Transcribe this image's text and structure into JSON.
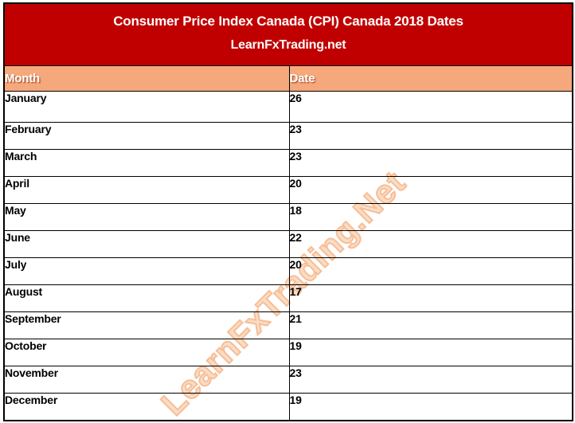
{
  "header": {
    "title": "Consumer Price Index Canada (CPI) Canada 2018 Dates",
    "subtitle": "LearnFxTrading.net"
  },
  "table": {
    "columns": [
      "Month",
      "Date"
    ],
    "rows": [
      {
        "month": "January",
        "date": "26"
      },
      {
        "month": "February",
        "date": "23"
      },
      {
        "month": "March",
        "date": "23"
      },
      {
        "month": "April",
        "date": "20"
      },
      {
        "month": "May",
        "date": "18"
      },
      {
        "month": "June",
        "date": "22"
      },
      {
        "month": "July",
        "date": "20"
      },
      {
        "month": "August",
        "date": "17"
      },
      {
        "month": "September",
        "date": "21"
      },
      {
        "month": "October",
        "date": "19"
      },
      {
        "month": "November",
        "date": "23"
      },
      {
        "month": "December",
        "date": "19"
      }
    ]
  },
  "watermark": {
    "text": "LearnFxTrading.Net"
  },
  "colors": {
    "banner_bg": "#C00000",
    "banner_text": "#FFFFFF",
    "column_header_bg": "#F4A87B",
    "column_header_text": "#FFFFFF",
    "border": "#000000",
    "watermark": "#F6BE97"
  }
}
